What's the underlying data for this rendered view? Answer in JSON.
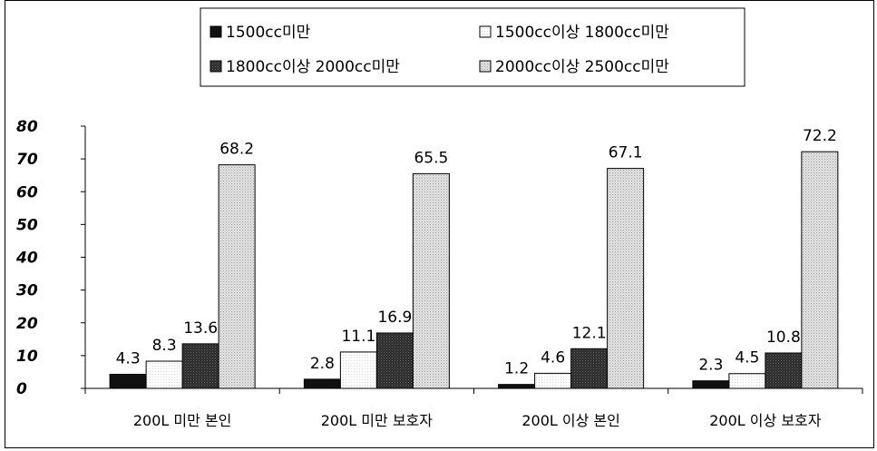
{
  "chart_data": {
    "type": "bar",
    "categories": [
      "200L 미만 본인",
      "200L 미만 보호자",
      "200L 이상 본인",
      "200L 이상 보호자"
    ],
    "series": [
      {
        "name": "1500cc미만",
        "values": [
          4.3,
          2.8,
          1.2,
          2.3
        ],
        "color": "#111111"
      },
      {
        "name": "1500cc이상 1800cc미만",
        "values": [
          8.3,
          11.1,
          4.6,
          4.5
        ],
        "color": "#ffffff"
      },
      {
        "name": "1800cc이상 2000cc미만",
        "values": [
          13.6,
          16.9,
          12.1,
          10.8
        ],
        "color": "#333333"
      },
      {
        "name": "2000cc이상 2500cc미만",
        "values": [
          68.2,
          65.5,
          67.1,
          72.2
        ],
        "color": "#d4d4d4"
      }
    ],
    "y_ticks": [
      "0",
      "10",
      "20",
      "30",
      "40",
      "50",
      "60",
      "70",
      "80"
    ],
    "ylim": [
      0,
      80
    ],
    "grid": false,
    "legend_position": "top-center"
  }
}
